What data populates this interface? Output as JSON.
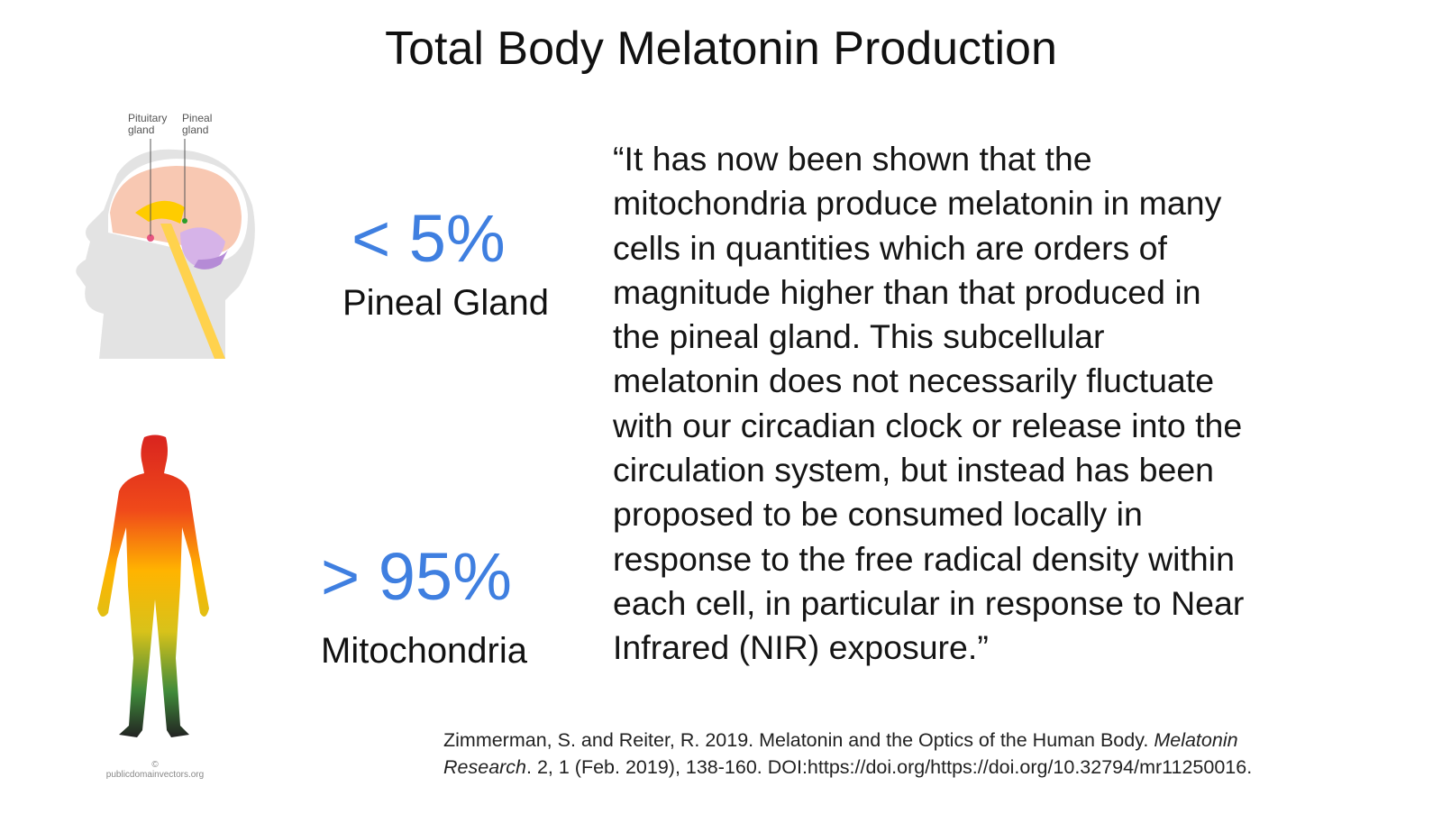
{
  "slide": {
    "title": "Total Body Melatonin Production",
    "brain_diagram": {
      "pituitary_label": [
        "Pituitary",
        "gland"
      ],
      "pineal_label": [
        "Pineal",
        "gland"
      ]
    },
    "pineal": {
      "stat": "< 5%",
      "label": "Pineal Gland"
    },
    "mitochondria": {
      "stat": "> 95%",
      "label": "Mitochondria"
    },
    "quote_lines": [
      "“It has now been shown that the",
      "mitochondria produce melatonin in many",
      "cells in quantities which are orders of",
      "magnitude higher than that produced in",
      "the pineal gland. This subcellular",
      "melatonin does not necessarily fluctuate",
      "with our circadian clock or release into the",
      "circulation system, but instead has been",
      "proposed to be consumed locally in",
      "response to the free radical density within",
      "each cell, in particular in response to Near",
      "Infrared (NIR) exposure.”"
    ],
    "citation": {
      "line1_plain": "Zimmerman, S. and Reiter, R. 2019. Melatonin and the Optics of the Human Body. ",
      "line1_italic": "Melatonin",
      "line2_italic": "Research",
      "line2_plain": ". 2, 1 (Feb. 2019), 138-160. DOI:https://doi.org/https://doi.org/10.32794/mr11250016."
    },
    "image_credit": "publicdomainvectors.org",
    "accent_color": "#3f7fe0"
  }
}
